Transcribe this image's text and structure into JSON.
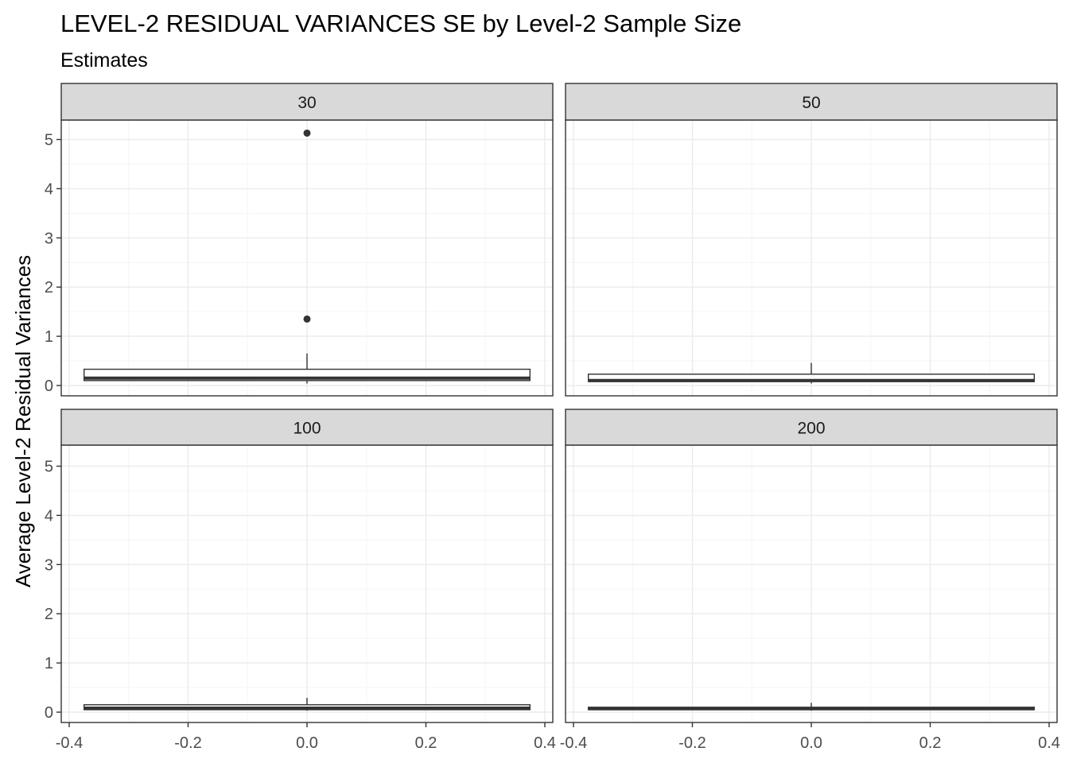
{
  "chart_data": {
    "type": "box",
    "title": "LEVEL-2 RESIDUAL VARIANCES SE by Level-2 Sample Size",
    "subtitle": "Estimates",
    "xlabel": "",
    "ylabel": "Average Level-2 Residual Variances",
    "xlim": [
      -0.4,
      0.4
    ],
    "ylim": [
      0,
      5
    ],
    "x_ticks": [
      "-0.4",
      "-0.2",
      "0.0",
      "0.2",
      "0.4"
    ],
    "y_ticks": [
      "0",
      "1",
      "2",
      "3",
      "4",
      "5"
    ],
    "grid": true,
    "facet_layout": "2x2",
    "facets": [
      {
        "label": "30",
        "box": {
          "xmin": -0.375,
          "xmax": 0.375,
          "lower_whisker": 0.04,
          "q1": 0.1,
          "median": 0.15,
          "q3": 0.33,
          "upper_whisker": 0.65
        },
        "outliers": [
          1.35,
          5.13
        ]
      },
      {
        "label": "50",
        "box": {
          "xmin": -0.375,
          "xmax": 0.375,
          "lower_whisker": 0.04,
          "q1": 0.08,
          "median": 0.1,
          "q3": 0.23,
          "upper_whisker": 0.46
        },
        "outliers": []
      },
      {
        "label": "100",
        "box": {
          "xmin": -0.375,
          "xmax": 0.375,
          "lower_whisker": 0.03,
          "q1": 0.05,
          "median": 0.08,
          "q3": 0.15,
          "upper_whisker": 0.29
        },
        "outliers": []
      },
      {
        "label": "200",
        "box": {
          "xmin": -0.375,
          "xmax": 0.375,
          "lower_whisker": 0.03,
          "q1": 0.05,
          "median": 0.07,
          "q3": 0.1,
          "upper_whisker": 0.19
        },
        "outliers": []
      }
    ],
    "colors": {
      "panel_background": "#ffffff",
      "grid_major": "#ebebeb",
      "grid_minor": "#f5f5f5",
      "strip_fill": "#d9d9d9",
      "border": "#333333",
      "box_line": "#333333",
      "tick_text": "#4d4d4d"
    }
  }
}
